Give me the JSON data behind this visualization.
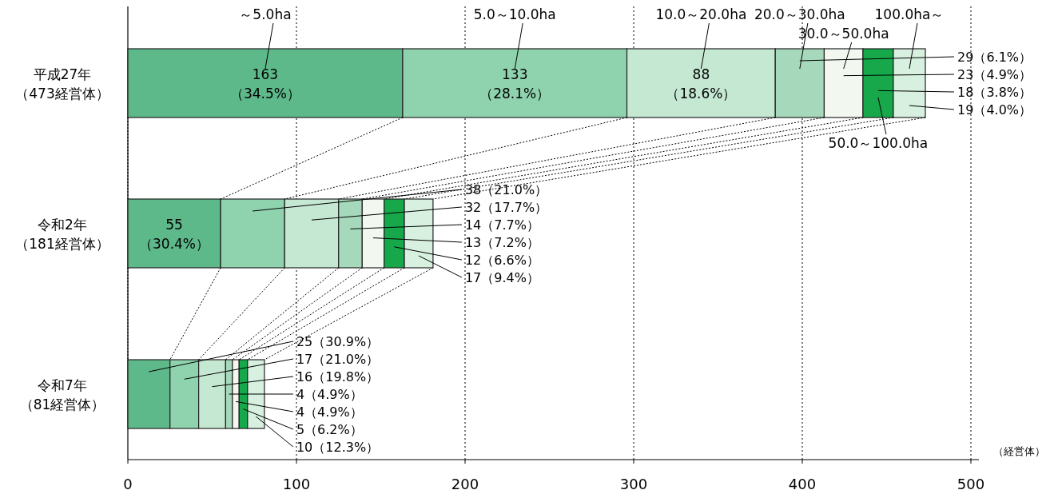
{
  "chart_data": {
    "type": "bar",
    "orientation": "horizontal",
    "stacked": true,
    "grid": "x",
    "categories": [
      "平成27年（473経営体）",
      "令和2年（181経営体）",
      "令和7年（81経営体）"
    ],
    "series": [
      {
        "name": "～5.0ha",
        "color": "#5db88a",
        "values": [
          163,
          55,
          25
        ],
        "value_labels": [
          "163（34.5%）",
          "55（30.4%）",
          "25（30.9%）"
        ]
      },
      {
        "name": "5.0～10.0ha",
        "color": "#8fd3ae",
        "values": [
          133,
          38,
          17
        ],
        "value_labels": [
          "133（28.1%）",
          "38（21.0%）",
          "17（21.0%）"
        ]
      },
      {
        "name": "10.0～20.0ha",
        "color": "#c5e8d3",
        "values": [
          88,
          32,
          16
        ],
        "value_labels": [
          "88（18.6%）",
          "32（17.7%）",
          "16（19.8%）"
        ]
      },
      {
        "name": "20.0～30.0ha",
        "color": "#a6d9bb",
        "values": [
          29,
          14,
          4
        ],
        "value_labels": [
          "29（6.1%）",
          "14（7.7%）",
          "4（4.9%）"
        ]
      },
      {
        "name": "30.0～50.0ha",
        "color": "#f2f7f0",
        "values": [
          23,
          13,
          4
        ],
        "value_labels": [
          "23（4.9%）",
          "13（7.2%）",
          "4（4.9%）"
        ]
      },
      {
        "name": "50.0～100.0ha",
        "color": "#16a84a",
        "values": [
          18,
          12,
          5
        ],
        "value_labels": [
          "18（3.8%）",
          "12（6.6%）",
          "5（6.2%）"
        ]
      },
      {
        "name": "100.0ha～",
        "color": "#d7f0e0",
        "values": [
          19,
          17,
          10
        ],
        "value_labels": [
          "19（4.0%）",
          "17（9.4%）",
          "10（12.3%）"
        ]
      }
    ],
    "xlim": [
      0,
      500
    ],
    "xticks": [
      0,
      100,
      200,
      300,
      400,
      500
    ],
    "xlabel": "（経営体）"
  }
}
